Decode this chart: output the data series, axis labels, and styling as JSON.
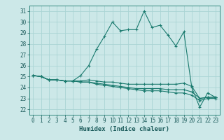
{
  "title": "",
  "xlabel": "Humidex (Indice chaleur)",
  "ylabel": "",
  "xlim": [
    -0.5,
    23.5
  ],
  "ylim": [
    21.5,
    31.5
  ],
  "yticks": [
    22,
    23,
    24,
    25,
    26,
    27,
    28,
    29,
    30,
    31
  ],
  "xticks": [
    0,
    1,
    2,
    3,
    4,
    5,
    6,
    7,
    8,
    9,
    10,
    11,
    12,
    13,
    14,
    15,
    16,
    17,
    18,
    19,
    20,
    21,
    22,
    23
  ],
  "bg_color": "#cce8e8",
  "grid_color": "#aad4d4",
  "line_color": "#1a7a6e",
  "series": [
    [
      25.1,
      25.0,
      24.7,
      24.7,
      24.6,
      24.6,
      25.1,
      26.0,
      27.5,
      28.7,
      30.0,
      29.2,
      29.3,
      29.3,
      31.0,
      29.5,
      29.7,
      28.8,
      27.8,
      29.1,
      24.0,
      22.2,
      23.5,
      23.1
    ],
    [
      25.1,
      25.0,
      24.7,
      24.7,
      24.6,
      24.6,
      24.6,
      24.7,
      24.6,
      24.5,
      24.5,
      24.4,
      24.3,
      24.3,
      24.3,
      24.3,
      24.3,
      24.3,
      24.3,
      24.4,
      24.1,
      23.0,
      23.1,
      23.1
    ],
    [
      25.1,
      25.0,
      24.7,
      24.7,
      24.6,
      24.6,
      24.5,
      24.5,
      24.4,
      24.3,
      24.2,
      24.1,
      24.0,
      23.9,
      23.9,
      23.9,
      23.9,
      23.8,
      23.8,
      23.8,
      23.6,
      23.0,
      23.1,
      23.1
    ],
    [
      25.1,
      25.0,
      24.7,
      24.7,
      24.6,
      24.6,
      24.5,
      24.5,
      24.3,
      24.2,
      24.1,
      24.0,
      23.9,
      23.8,
      23.7,
      23.7,
      23.7,
      23.6,
      23.5,
      23.5,
      23.3,
      22.8,
      23.0,
      23.0
    ]
  ]
}
